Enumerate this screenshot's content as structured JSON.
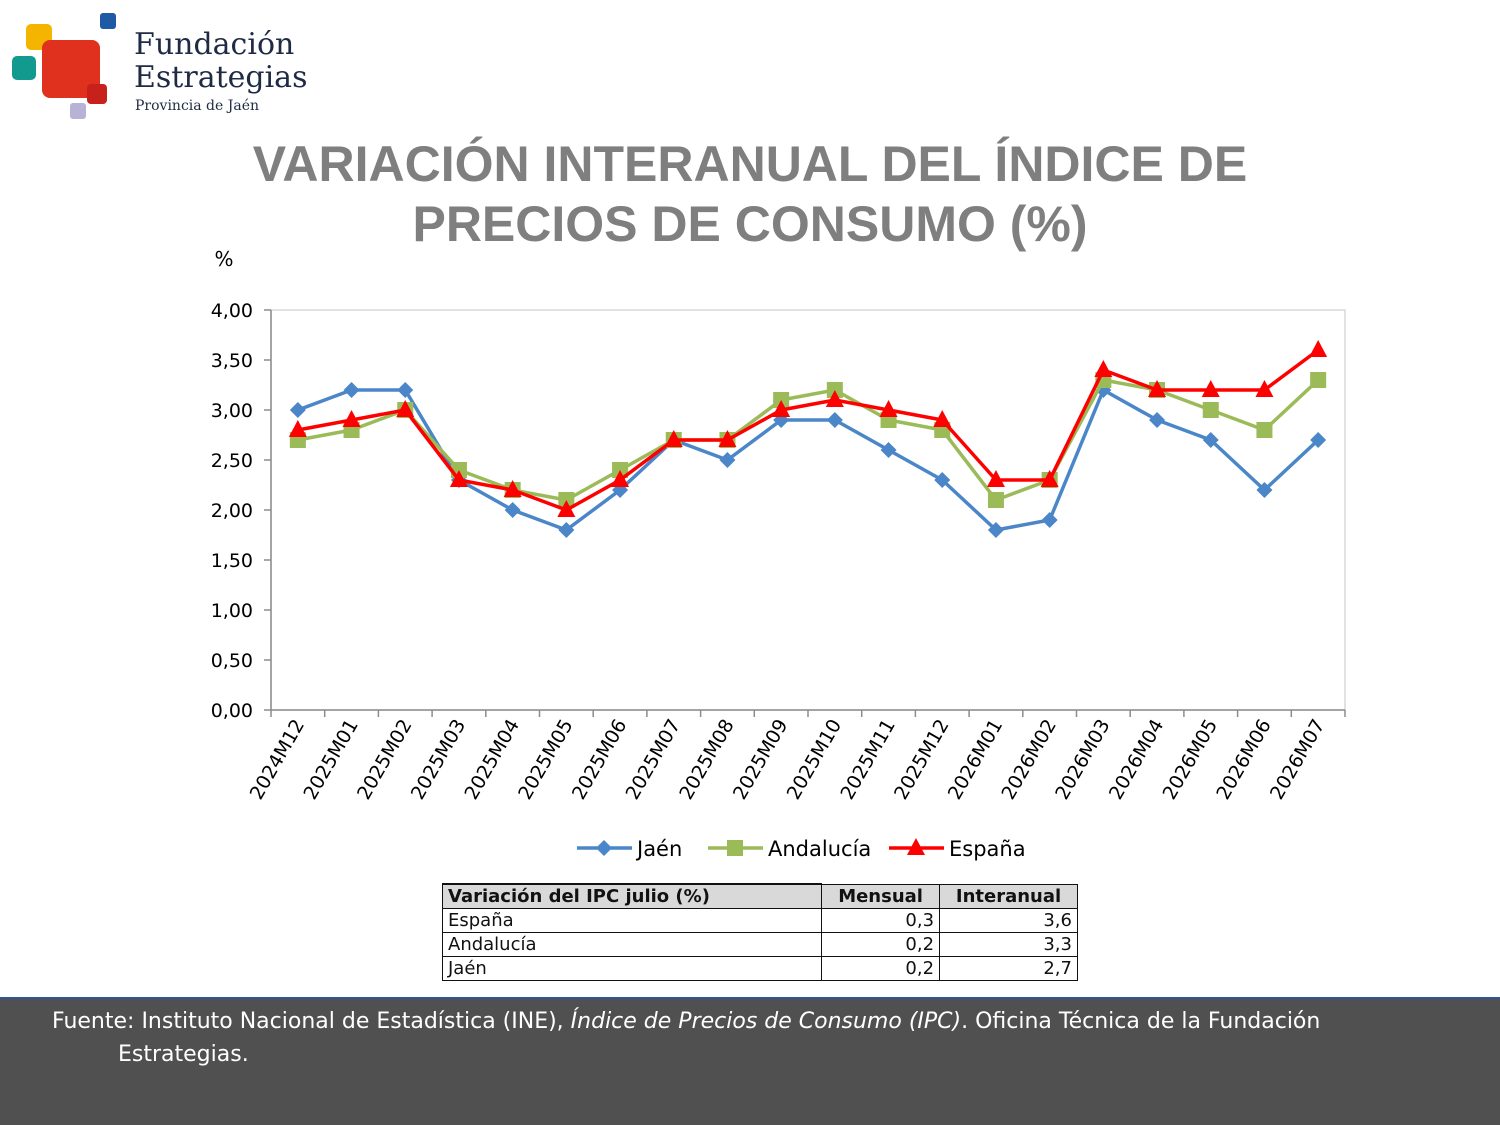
{
  "logo": {
    "name_line1": "Fundación",
    "name_line2": "Estrategias",
    "subtitle": "Provincia de Jaén"
  },
  "page_title": {
    "line1": "VARIACIÓN INTERANUAL DEL ÍNDICE DE",
    "line2": "PRECIOS DE CONSUMO (%)"
  },
  "chart_data": {
    "type": "line",
    "ylabel": "%",
    "ylim": [
      0,
      4
    ],
    "yticks": [
      "0,00",
      "0,50",
      "1,00",
      "1,50",
      "2,00",
      "2,50",
      "3,00",
      "3,50",
      "4,00"
    ],
    "grid": false,
    "legend_position": "bottom",
    "categories": [
      "2024M12",
      "2025M01",
      "2025M02",
      "2025M03",
      "2025M04",
      "2025M05",
      "2025M06",
      "2025M07",
      "2025M08",
      "2025M09",
      "2025M10",
      "2025M11",
      "2025M12",
      "2026M01",
      "2026M02",
      "2026M03",
      "2026M04",
      "2026M05",
      "2026M06",
      "2026M07"
    ],
    "series": [
      {
        "name": "Jaén",
        "color": "#4a86c8",
        "marker": "diamond",
        "values": [
          3.0,
          3.2,
          3.2,
          2.3,
          2.0,
          1.8,
          2.2,
          2.7,
          2.5,
          2.9,
          2.9,
          2.6,
          2.3,
          1.8,
          1.9,
          3.2,
          2.9,
          2.7,
          2.2,
          2.7
        ]
      },
      {
        "name": "Andalucía",
        "color": "#9bbb59",
        "marker": "square",
        "values": [
          2.7,
          2.8,
          3.0,
          2.4,
          2.2,
          2.1,
          2.4,
          2.7,
          2.7,
          3.1,
          3.2,
          2.9,
          2.8,
          2.1,
          2.3,
          3.3,
          3.2,
          3.0,
          2.8,
          3.3
        ]
      },
      {
        "name": "España",
        "color": "#ff0000",
        "marker": "triangle",
        "values": [
          2.8,
          2.9,
          3.0,
          2.3,
          2.2,
          2.0,
          2.3,
          2.7,
          2.7,
          3.0,
          3.1,
          3.0,
          2.9,
          2.3,
          2.3,
          3.4,
          3.2,
          3.2,
          3.2,
          3.6
        ]
      }
    ]
  },
  "ipc_table": {
    "headers": [
      "Variación del IPC julio (%)",
      "Mensual",
      "Interanual"
    ],
    "rows": [
      {
        "name": "España",
        "mensual": "0,3",
        "interanual": "3,6"
      },
      {
        "name": "Andalucía",
        "mensual": "0,2",
        "interanual": "3,3"
      },
      {
        "name": "Jaén",
        "mensual": "0,2",
        "interanual": "2,7"
      }
    ]
  },
  "footer": {
    "prefix": "Fuente: Instituto Nacional de Estadística (INE), ",
    "italic": "Índice de Precios de Consumo (IPC)",
    "suffix": ". Oficina Técnica de la Fundación",
    "line2": "Estrategias."
  }
}
